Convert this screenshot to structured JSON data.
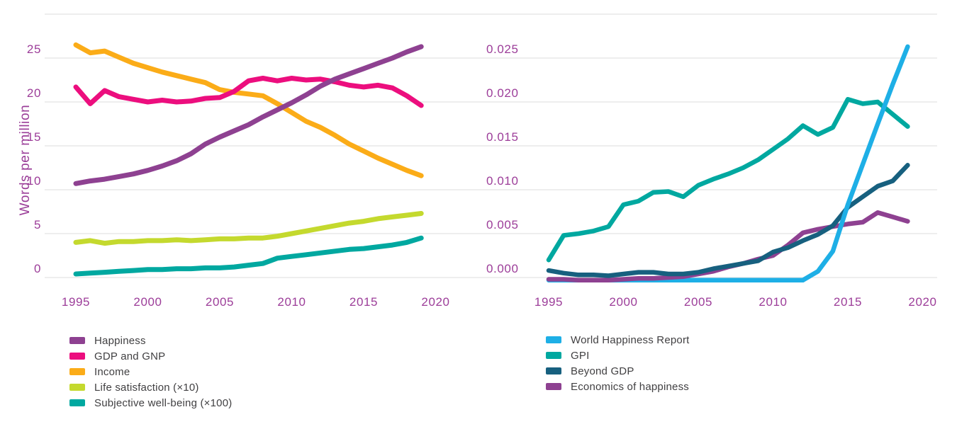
{
  "figure": {
    "y_axis_title": "Words per million",
    "axis_text_color": "#9c3d99",
    "grid_color": "#e3e3e3",
    "legend_text_color": "#414042",
    "background_color": "#ffffff"
  },
  "chart_data": [
    {
      "type": "line",
      "panel": "left",
      "ylabel": "Words per million",
      "grid": true,
      "legend_position": "bottom-left",
      "x": [
        1995,
        1996,
        1997,
        1998,
        1999,
        2000,
        2001,
        2002,
        2003,
        2004,
        2005,
        2006,
        2007,
        2008,
        2009,
        2010,
        2011,
        2012,
        2013,
        2014,
        2015,
        2016,
        2017,
        2018,
        2019
      ],
      "x_ticks": [
        "1995",
        "2000",
        "2005",
        "2010",
        "2015",
        "2020"
      ],
      "x_tick_years": [
        1995,
        2000,
        2005,
        2010,
        2015,
        2020
      ],
      "y_ticks": [
        "0",
        "5",
        "10",
        "15",
        "20",
        "25"
      ],
      "y_tick_values": [
        0,
        5,
        10,
        15,
        20,
        25
      ],
      "ylim": [
        0,
        30
      ],
      "series": [
        {
          "name": "Happiness",
          "color": "#8e4191",
          "values": [
            10.7,
            11.0,
            11.2,
            11.5,
            11.8,
            12.2,
            12.7,
            13.3,
            14.1,
            15.2,
            16.0,
            16.7,
            17.4,
            18.3,
            19.1,
            19.9,
            20.8,
            21.8,
            22.6,
            23.2,
            23.8,
            24.4,
            25.0,
            25.7,
            26.3
          ]
        },
        {
          "name": "GDP and GNP",
          "color": "#ec0e7e",
          "values": [
            21.7,
            19.8,
            21.3,
            20.6,
            20.3,
            20.0,
            20.2,
            20.0,
            20.1,
            20.4,
            20.5,
            21.2,
            22.4,
            22.7,
            22.4,
            22.7,
            22.5,
            22.6,
            22.3,
            21.9,
            21.7,
            21.9,
            21.6,
            20.7,
            19.6
          ]
        },
        {
          "name": "Income",
          "color": "#fbac18",
          "values": [
            26.5,
            25.6,
            25.8,
            25.1,
            24.4,
            23.9,
            23.4,
            23.0,
            22.6,
            22.2,
            21.4,
            21.1,
            20.9,
            20.7,
            19.8,
            18.8,
            17.8,
            17.1,
            16.2,
            15.2,
            14.4,
            13.6,
            12.9,
            12.2,
            11.6
          ]
        },
        {
          "name": "Life satisfaction (×10)",
          "color": "#c4d92e",
          "values": [
            4.0,
            4.2,
            3.9,
            4.1,
            4.1,
            4.2,
            4.2,
            4.3,
            4.2,
            4.3,
            4.4,
            4.4,
            4.5,
            4.5,
            4.7,
            5.0,
            5.3,
            5.6,
            5.9,
            6.2,
            6.4,
            6.7,
            6.9,
            7.1,
            7.3
          ]
        },
        {
          "name": "Subjective well-being (×100)",
          "color": "#00a8a0",
          "values": [
            0.4,
            0.5,
            0.6,
            0.7,
            0.8,
            0.9,
            0.9,
            1.0,
            1.0,
            1.1,
            1.1,
            1.2,
            1.4,
            1.6,
            2.2,
            2.4,
            2.6,
            2.8,
            3.0,
            3.2,
            3.3,
            3.5,
            3.7,
            4.0,
            4.5
          ]
        }
      ]
    },
    {
      "type": "line",
      "panel": "right",
      "ylabel": "",
      "grid": true,
      "legend_position": "bottom-left",
      "x": [
        1995,
        1996,
        1997,
        1998,
        1999,
        2000,
        2001,
        2002,
        2003,
        2004,
        2005,
        2006,
        2007,
        2008,
        2009,
        2010,
        2011,
        2012,
        2013,
        2014,
        2015,
        2016,
        2017,
        2018,
        2019
      ],
      "x_ticks": [
        "1995",
        "2000",
        "2005",
        "2010",
        "2015",
        "2020"
      ],
      "x_tick_years": [
        1995,
        2000,
        2005,
        2010,
        2015,
        2020
      ],
      "y_ticks": [
        "0.000",
        "0.005",
        "0.010",
        "0.015",
        "0.020",
        "0.025"
      ],
      "y_tick_values": [
        0,
        0.005,
        0.01,
        0.015,
        0.02,
        0.025
      ],
      "ylim": [
        0,
        0.03
      ],
      "series": [
        {
          "name": "World Happiness Report",
          "color": "#1eafe6",
          "values": [
            -0.0003,
            -0.0003,
            -0.0003,
            -0.0003,
            -0.0003,
            -0.0003,
            -0.0003,
            -0.0003,
            -0.0003,
            -0.0003,
            -0.0003,
            -0.0003,
            -0.0003,
            -0.0003,
            -0.0003,
            -0.0003,
            -0.0003,
            -0.0003,
            0.0007,
            0.003,
            0.0083,
            0.0129,
            0.0175,
            0.022,
            0.0263
          ]
        },
        {
          "name": "GPI",
          "color": "#00a8a0",
          "values": [
            0.002,
            0.0048,
            0.005,
            0.0053,
            0.0058,
            0.0083,
            0.0087,
            0.0097,
            0.0098,
            0.0092,
            0.0105,
            0.0112,
            0.0118,
            0.0125,
            0.0134,
            0.0146,
            0.0158,
            0.0173,
            0.0163,
            0.0171,
            0.0203,
            0.0198,
            0.02,
            0.0186,
            0.0172
          ]
        },
        {
          "name": "Beyond GDP",
          "color": "#17607f",
          "values": [
            0.0008,
            0.0005,
            0.0003,
            0.0003,
            0.0002,
            0.0004,
            0.0006,
            0.0006,
            0.0004,
            0.0004,
            0.0006,
            0.001,
            0.0013,
            0.0016,
            0.0019,
            0.0029,
            0.0034,
            0.0042,
            0.0049,
            0.0059,
            0.008,
            0.0092,
            0.0104,
            0.011,
            0.0128
          ]
        },
        {
          "name": "Economics of happiness",
          "color": "#8e4191",
          "values": [
            -0.0002,
            -0.0002,
            -0.0003,
            -0.0003,
            -0.0003,
            -0.0002,
            -0.0001,
            -0.0001,
            0.0,
            0.0001,
            0.0004,
            0.0007,
            0.0012,
            0.0016,
            0.0021,
            0.0025,
            0.0037,
            0.0051,
            0.0055,
            0.0058,
            0.0061,
            0.0063,
            0.0074,
            0.0069,
            0.0064
          ]
        }
      ]
    }
  ]
}
